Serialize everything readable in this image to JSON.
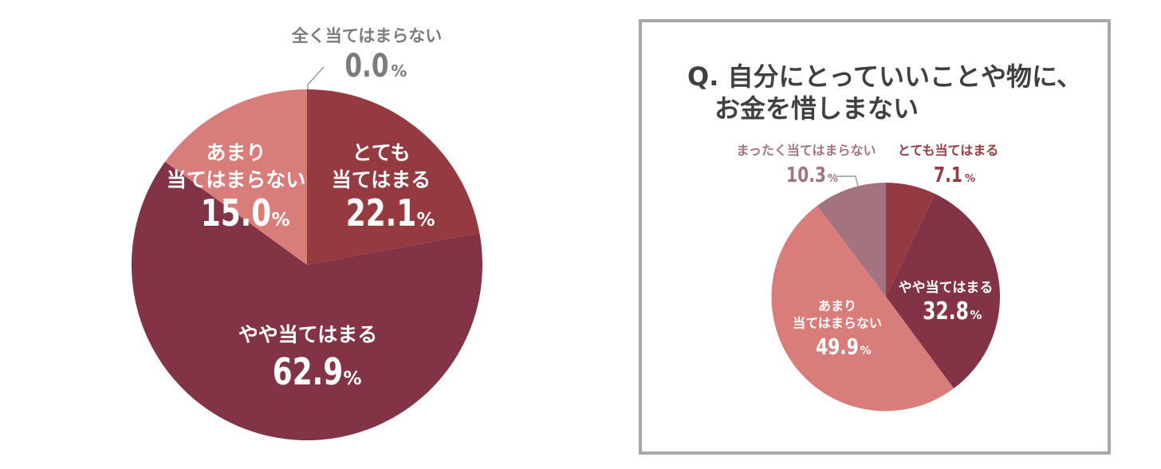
{
  "colors": {
    "very": "#963a42",
    "somewhat": "#823345",
    "not_much": "#d97d7b",
    "not_at_all": "#a37380",
    "dark_text": "#7c7c7c",
    "frame": "#a8a8a8"
  },
  "chart_data": [
    {
      "type": "pie",
      "title": "",
      "unit": "%",
      "slices": [
        {
          "label": "とても当てはまる",
          "label_lines": [
            "とても",
            "当てはまる"
          ],
          "value": 22.1,
          "value_text": "22.1"
        },
        {
          "label": "やや当てはまる",
          "label_lines": [
            "やや当てはまる"
          ],
          "value": 62.9,
          "value_text": "62.9"
        },
        {
          "label": "あまり当てはまらない",
          "label_lines": [
            "あまり",
            "当てはまらない"
          ],
          "value": 15.0,
          "value_text": "15.0"
        },
        {
          "label": "全く当てはまらない",
          "label_lines": [
            "全く当てはまらない"
          ],
          "value": 0.0,
          "value_text": "0.0"
        }
      ]
    },
    {
      "type": "pie",
      "title": "",
      "unit": "%",
      "slices": [
        {
          "label": "とても当てはまる",
          "label_lines": [
            "とても当てはまる"
          ],
          "value": 7.1,
          "value_text": "7.1"
        },
        {
          "label": "やや当てはまる",
          "label_lines": [
            "やや当てはまる"
          ],
          "value": 32.8,
          "value_text": "32.8"
        },
        {
          "label": "あまり当てはまらない",
          "label_lines": [
            "あまり",
            "当てはまらない"
          ],
          "value": 49.9,
          "value_text": "49.9"
        },
        {
          "label": "まったく当てはまらない",
          "label_lines": [
            "まったく当てはまらない"
          ],
          "value": 10.3,
          "value_text": "10.3"
        }
      ]
    }
  ],
  "question": {
    "line1": "Q. 自分にとっていいことや物に、",
    "line2": "お金を惜しまない"
  }
}
